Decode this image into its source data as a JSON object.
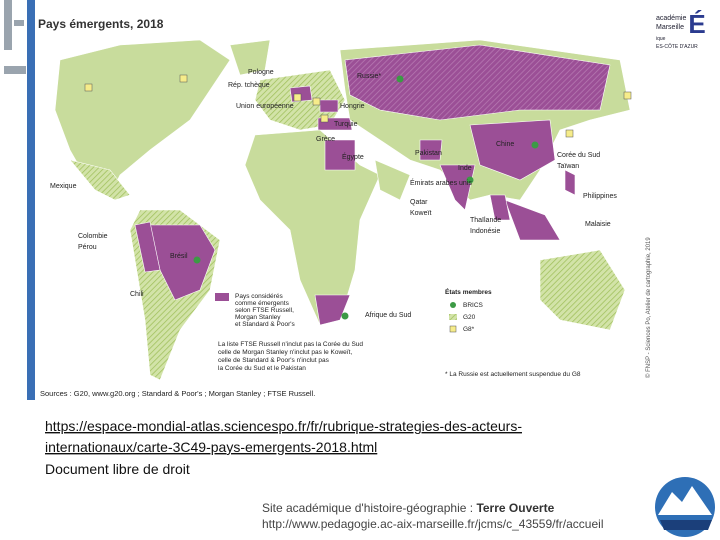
{
  "map": {
    "title": "Pays émergents, 2018",
    "labels": [
      "Pologne",
      "Rép. tchèque",
      "Union européenne",
      "Russie*",
      "Hongrie",
      "Turquie",
      "Grèce",
      "Égypte",
      "Pakistan",
      "Inde",
      "Chine",
      "Corée du Sud",
      "Taïwan",
      "Philippines",
      "Malaisie",
      "Thaïlande",
      "Indonésie",
      "Émirats arabes unis",
      "Qatar",
      "Koweït",
      "Mexique",
      "Colombie",
      "Pérou",
      "Brésil",
      "Chili",
      "Afrique du Sud"
    ],
    "legend": {
      "emerging": [
        "Pays considérés",
        "comme émergents",
        "selon FTSE Russell,",
        "Morgan Stanley",
        "et Standard & Poor's"
      ],
      "members_title": "États membres",
      "members": [
        "BRICS",
        "G20",
        "G8*"
      ]
    },
    "notes": [
      "La liste FTSE Russell n'inclut pas la Corée du Sud",
      "celle de Morgan Stanley n'inclut pas le Koweït,",
      "celle de Standard & Poor's n'inclut pas",
      "la Corée du Sud et le Pakistan"
    ],
    "footnote": "* La Russie est actuellement suspendue du G8",
    "sources": "Sources : G20, www.g20.org ; Standard & Poor's ; Morgan Stanley ; FTSE Russell.",
    "credit": "© FNSP - Sciences Po, Atelier de cartographie, 2019"
  },
  "logo": {
    "lines": [
      "académie",
      "Marseille",
      "ique",
      "ES-CÔTE D'AZUR"
    ],
    "letter": "É"
  },
  "link": [
    "https://espace-mondial-atlas.sciencespo.fr/fr/rubrique-strategies-des-acteurs-",
    "internationaux/carte-3C49-pays-emergents-2018.html"
  ],
  "license": "Document libre de droit",
  "footer": {
    "site_prefix": "Site académique d'histoire-géographie : ",
    "site_name": "Terre Ouverte",
    "url": "http://www.pedagogie.ac-aix-marseille.fr/jcms/c_43559/fr/accueil"
  }
}
